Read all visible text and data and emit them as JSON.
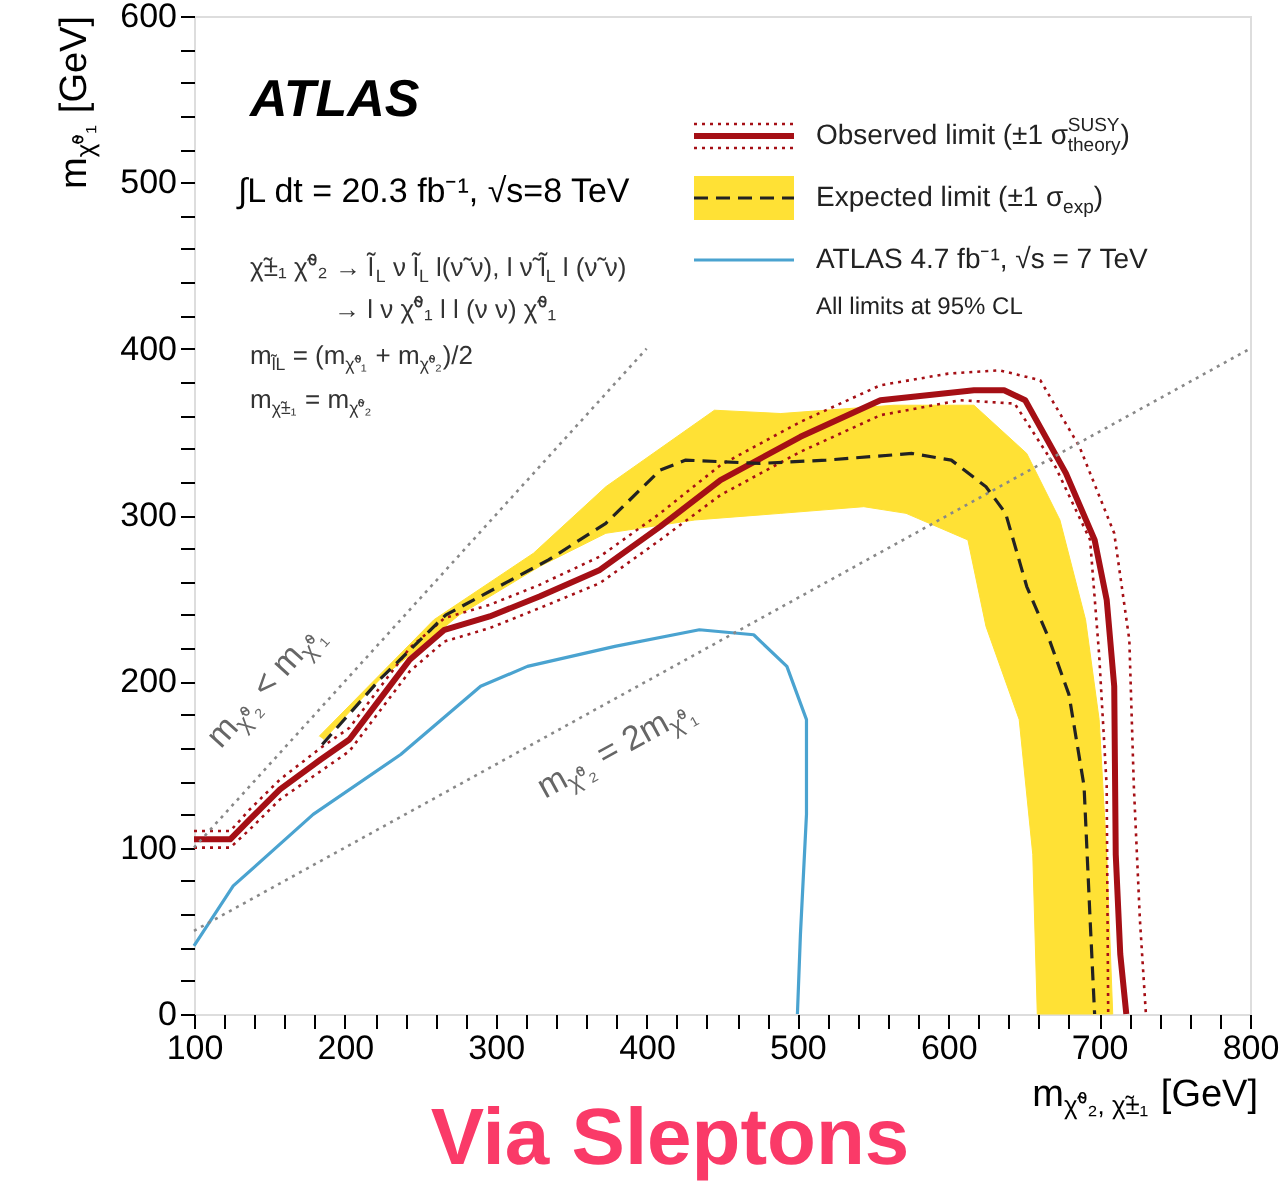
{
  "chart_data": {
    "type": "line",
    "title": "Via Sleptons",
    "xlabel": "m$_{χ̃⁰₂, χ̃±₁}$ [GeV]",
    "ylabel": "m$_{χ̃⁰₁}$ [GeV]",
    "xlim": [
      100,
      800
    ],
    "ylim": [
      0,
      600
    ],
    "xticks": [
      100,
      {
        "value": 120,
        "label": null
      },
      {
        "value": 140,
        "label": null
      },
      {
        "value": 160,
        "label": null
      },
      {
        "value": 180,
        "label": null
      },
      200,
      {
        "value": 220,
        "label": null
      },
      {
        "value": 240,
        "label": null
      },
      {
        "value": 260,
        "label": null
      },
      {
        "value": 280,
        "label": null
      },
      300,
      {
        "value": 320,
        "label": null
      },
      {
        "value": 340,
        "label": null
      },
      {
        "value": 360,
        "label": null
      },
      {
        "value": 380,
        "label": null
      },
      400,
      {
        "value": 420,
        "label": null
      },
      {
        "value": 440,
        "label": null
      },
      {
        "value": 460,
        "label": null
      },
      {
        "value": 480,
        "label": null
      },
      500,
      {
        "value": 520,
        "label": null
      },
      {
        "value": 540,
        "label": null
      },
      {
        "value": 560,
        "label": null
      },
      {
        "value": 580,
        "label": null
      },
      600,
      {
        "value": 620,
        "label": null
      },
      {
        "value": 640,
        "label": null
      },
      {
        "value": 660,
        "label": null
      },
      {
        "value": 680,
        "label": null
      },
      700,
      {
        "value": 720,
        "label": null
      },
      {
        "value": 740,
        "label": null
      },
      {
        "value": 760,
        "label": null
      },
      {
        "value": 780,
        "label": null
      },
      800
    ],
    "yticks": [
      0,
      {
        "value": 20,
        "label": null
      },
      {
        "value": 40,
        "label": null
      },
      {
        "value": 60,
        "label": null
      },
      {
        "value": 80,
        "label": null
      },
      100,
      {
        "value": 120,
        "label": null
      },
      {
        "value": 140,
        "label": null
      },
      {
        "value": 160,
        "label": null
      },
      {
        "value": 180,
        "label": null
      },
      200,
      {
        "value": 220,
        "label": null
      },
      {
        "value": 240,
        "label": null
      },
      {
        "value": 260,
        "label": null
      },
      {
        "value": 280,
        "label": null
      },
      300,
      {
        "value": 320,
        "label": null
      },
      {
        "value": 340,
        "label": null
      },
      {
        "value": 360,
        "label": null
      },
      {
        "value": 380,
        "label": null
      },
      400,
      {
        "value": 420,
        "label": null
      },
      {
        "value": 440,
        "label": null
      },
      {
        "value": 460,
        "label": null
      },
      {
        "value": 480,
        "label": null
      },
      500,
      {
        "value": 520,
        "label": null
      },
      {
        "value": 540,
        "label": null
      },
      {
        "value": 560,
        "label": null
      },
      {
        "value": 580,
        "label": null
      },
      600
    ],
    "grid": false,
    "legend": "top right",
    "series": [
      {
        "type": "line",
        "color": "#a50f15",
        "line_style": "dotted",
        "x": [
          100,
          124,
          137,
          157,
          184,
          203,
          223,
          243,
          266,
          296,
          329,
          369,
          409,
          449,
          502,
          555,
          600,
          634,
          661,
          687,
          710,
          720,
          723,
          727,
          731
        ],
        "values": [
          110,
          110,
          123,
          141,
          160,
          172,
          196,
          220,
          238,
          246,
          258,
          275,
          301,
          330,
          356,
          378,
          385,
          387,
          381,
          341,
          289,
          225,
          137,
          57,
          0
        ]
      },
      {
        "type": "line",
        "color": "#a50f15",
        "line_style": "dotted",
        "x": [
          100,
          124,
          137,
          157,
          184,
          203,
          223,
          243,
          266,
          296,
          329,
          369,
          409,
          449,
          502,
          555,
          608,
          644,
          671,
          694,
          700,
          705,
          706
        ],
        "values": [
          100,
          100,
          111,
          129,
          146,
          158,
          182,
          206,
          224,
          232,
          244,
          259,
          285,
          312,
          338,
          360,
          369,
          367,
          329,
          285,
          216,
          137,
          0
        ]
      },
      {
        "type": "line",
        "name": "Observed limit (±1 σ$^{SUSY}$$_{theory}$)",
        "color": "#a50f15",
        "line_style": "solid",
        "x": [
          100,
          124,
          137,
          157,
          184,
          203,
          223,
          243,
          266,
          296,
          329,
          369,
          409,
          449,
          502,
          555,
          617,
          637,
          651,
          678,
          697,
          705,
          710,
          711,
          714,
          718
        ],
        "values": [
          105,
          105,
          117,
          135,
          153,
          165,
          189,
          213,
          231,
          239,
          251,
          267,
          293,
          321,
          347,
          369,
          375,
          375,
          369,
          325,
          285,
          249,
          197,
          96,
          36,
          0
        ]
      },
      {
        "type": "area",
        "color": "#ffe135",
        "x": [
          183,
          259,
          325,
          373,
          445,
          489,
          564,
          617,
          652,
          674,
          691,
          700,
          705,
          709,
          659,
          656,
          647,
          625,
          613,
          572,
          544,
          489,
          432,
          373,
          329,
          276,
          223,
          186
        ],
        "values": [
          167,
          237,
          277,
          317,
          363,
          361,
          366,
          366,
          337,
          297,
          237,
          177,
          96,
          0,
          0,
          96,
          177,
          233,
          285,
          301,
          305,
          301,
          297,
          289,
          269,
          240,
          201,
          165
        ]
      },
      {
        "type": "line",
        "name": "Expected limit (±1 σ$_{exp}$)",
        "color": "#222222",
        "line_style": "dashed",
        "x": [
          185,
          223,
          267,
          335,
          373,
          409,
          426,
          475,
          519,
          576,
          602,
          625,
          638,
          652,
          667,
          680,
          690,
          694,
          697
        ],
        "values": [
          162,
          201,
          240,
          273,
          295,
          327,
          333,
          331,
          333,
          337,
          333,
          317,
          301,
          257,
          225,
          192,
          137,
          57,
          0
        ]
      },
      {
        "type": "line",
        "name": "ATLAS 4.7 fb⁻¹, √s = 7 TeV",
        "color": "#4aa3d0",
        "line_style": "solid",
        "x": [
          100,
          126,
          179,
          237,
          290,
          321,
          379,
          435,
          471,
          493,
          506,
          506,
          502,
          500
        ],
        "values": [
          41,
          77,
          120,
          156,
          197,
          209,
          221,
          231,
          228,
          209,
          177,
          120,
          48,
          0
        ]
      },
      {
        "type": "line",
        "color": "#888888",
        "line_style": "dotted",
        "x": [
          100,
          400
        ],
        "values": [
          100,
          400
        ]
      },
      {
        "type": "line",
        "color": "#888888",
        "line_style": "dotted",
        "x": [
          100,
          800
        ],
        "values": [
          50,
          400
        ]
      }
    ],
    "annotations": [
      "ATLAS",
      "∫L dt = 20.3 fb⁻¹, √s=8 TeV",
      "χ̃±₁ χ̃⁰₂ → l̃$_{L}$ ν l̃$_{L}$ l(ν̃ ν), l ν̃ l̃$_{L}$ l (ν̃ ν)",
      "→ l ν χ̃⁰₁ l l (ν ν) χ̃⁰₁",
      "m$_{l̃L}$ = (m$_{χ̃⁰₁}$ + m$_{χ̃⁰₂}$)/2",
      "m$_{χ̃±₁}$ = m$_{χ̃⁰₂}$",
      "m$_{χ̃⁰₂}$ < m$_{χ̃⁰₁}$",
      "m$_{χ̃⁰₂}$ = 2m$_{χ̃⁰₁}$",
      "All limits at 95% CL"
    ]
  }
}
